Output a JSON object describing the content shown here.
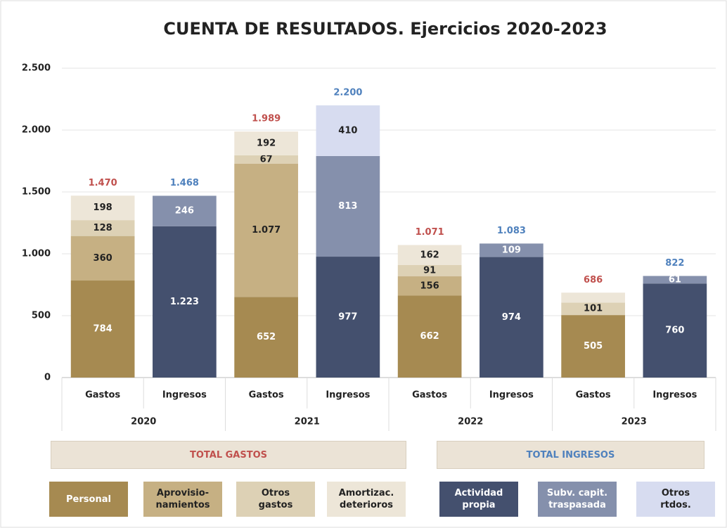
{
  "chart_data": {
    "type": "stacked-bar",
    "title": "CUENTA DE RESULTADOS. Ejercicios 2020-2023",
    "categories": [
      "Gastos",
      "Ingresos",
      "Gastos",
      "Ingresos",
      "Gastos",
      "Ingresos",
      "Gastos",
      "Ingresos"
    ],
    "groups": [
      "2020",
      "2021",
      "2022",
      "2023"
    ],
    "ylim": [
      0,
      2500
    ],
    "yticks": [
      0,
      {
        "value": 500,
        "label": "500"
      },
      {
        "value": 1000,
        "label": "1.000"
      },
      {
        "value": 1500,
        "label": "1.500"
      },
      {
        "value": 2000,
        "label": "2.000"
      },
      {
        "value": 2500,
        "label": "2.500"
      }
    ],
    "series_groups": [
      {
        "name": "TOTAL GASTOS",
        "color": "#c0504d"
      },
      {
        "name": "TOTAL INGRESOS",
        "color": "#4f81bd"
      }
    ],
    "series": [
      {
        "name": "Personal",
        "group": 0,
        "color": "#a68a51",
        "values": [
          784,
          null,
          652,
          null,
          662,
          null,
          505,
          null
        ],
        "value_labels": [
          "784",
          null,
          "652",
          null,
          "662",
          null,
          "505",
          null
        ]
      },
      {
        "name": "Aprovisio-\nnamientos",
        "group": 0,
        "color": "#c6b083",
        "values": [
          360,
          null,
          1077,
          null,
          156,
          null,
          null,
          null
        ],
        "value_labels": [
          "360",
          null,
          "1.077",
          null,
          "156",
          null,
          null,
          null
        ]
      },
      {
        "name": "Otros\ngastos",
        "group": 0,
        "color": "#ddd1b5",
        "values": [
          128,
          null,
          67,
          null,
          91,
          null,
          101,
          null
        ],
        "value_labels": [
          "128",
          null,
          "67",
          null,
          "91",
          null,
          "101",
          null
        ]
      },
      {
        "name": "Amortizac.\ndeterioros",
        "group": 0,
        "color": "#ede6d8",
        "values": [
          198,
          null,
          192,
          null,
          162,
          null,
          80,
          null
        ],
        "value_labels": [
          "198",
          null,
          "192",
          null,
          "162",
          null,
          null,
          null
        ]
      },
      {
        "name": "Actividad\npropia",
        "group": 1,
        "color": "#44506e",
        "values": [
          null,
          1223,
          null,
          977,
          null,
          974,
          null,
          760
        ],
        "value_labels": [
          null,
          "1.223",
          null,
          "977",
          null,
          "974",
          null,
          "760"
        ]
      },
      {
        "name": "Subv. capit.\ntraspasada",
        "group": 1,
        "color": "#8590ac",
        "values": [
          null,
          246,
          null,
          813,
          null,
          109,
          null,
          61
        ],
        "value_labels": [
          null,
          "246",
          null,
          "813",
          null,
          "109",
          null,
          "61"
        ]
      },
      {
        "name": "Otros\nrtdos.",
        "group": 1,
        "color": "#d7dcf0",
        "values": [
          null,
          null,
          null,
          410,
          null,
          null,
          null,
          null
        ],
        "value_labels": [
          null,
          null,
          null,
          "410",
          null,
          null,
          null,
          null
        ]
      }
    ],
    "totals": {
      "values": [
        1470,
        1468,
        1989,
        2200,
        1071,
        1083,
        686,
        822
      ],
      "labels": [
        "1.470",
        "1.468",
        "1.989",
        "2.200",
        "1.071",
        "1.083",
        "686",
        "822"
      ]
    }
  }
}
